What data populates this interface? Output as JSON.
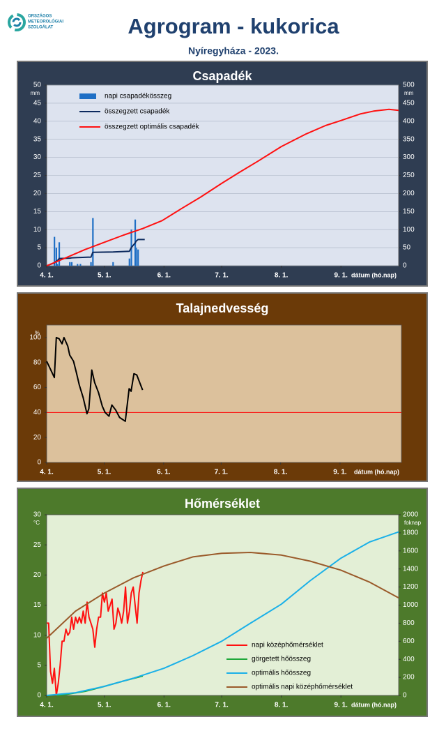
{
  "header": {
    "logo_text": [
      "ORSZÁGOS",
      "METEOROLÓGIAI",
      "SZOLGÁLAT"
    ],
    "title": "Agrogram - kukorica",
    "subtitle": "Nyíregyháza - 2023."
  },
  "chart_data": [
    {
      "type": "combo",
      "title": "Csapadék",
      "frame_color": "#2f3d52",
      "plot_color": "#dde3ef",
      "grid": true,
      "legend": "upper left",
      "xlabel": "dátum (hó.nap)",
      "ylabel": "mm",
      "y2label": "mm",
      "xlim": [
        0,
        183
      ],
      "xticks": [
        {
          "value": 0,
          "label": "4. 1."
        },
        {
          "value": 30,
          "label": "5. 1."
        },
        {
          "value": 61,
          "label": "6. 1."
        },
        {
          "value": 91,
          "label": "7. 1."
        },
        {
          "value": 122,
          "label": "8. 1."
        },
        {
          "value": 153,
          "label": "9. 1."
        }
      ],
      "ylim": [
        0,
        50
      ],
      "yticks": [
        0,
        5,
        10,
        15,
        20,
        25,
        30,
        35,
        40,
        45,
        50
      ],
      "y2lim": [
        0,
        500
      ],
      "y2ticks": [
        0,
        50,
        100,
        150,
        200,
        250,
        300,
        350,
        400,
        450,
        500
      ],
      "series": [
        {
          "name": "napi csapadékösszeg",
          "kind": "bar",
          "color": "#1f6fc5",
          "x": [
            4,
            5,
            5.5,
            6.5,
            12,
            13,
            16,
            17.5,
            23,
            24,
            34.5,
            43,
            44,
            46,
            46.5,
            47.5
          ],
          "values": [
            8,
            5,
            0.5,
            6.5,
            1,
            1,
            0.5,
            0.5,
            1,
            13.2,
            1,
            2,
            10,
            12.8,
            5,
            4.5
          ]
        },
        {
          "name": "összegzett csapadék",
          "kind": "line",
          "axis": "y2",
          "color": "#0d2a5e",
          "x": [
            0,
            4,
            5,
            5.5,
            6.5,
            12,
            13,
            16,
            17.5,
            23,
            24,
            34.5,
            43,
            44,
            46,
            46.5,
            47.5,
            51
          ],
          "values": [
            0,
            8,
            13,
            13.5,
            20,
            21,
            22,
            22.5,
            23,
            24,
            37.2,
            38.2,
            40.2,
            50.2,
            63,
            68,
            72.5,
            72.5
          ]
        },
        {
          "name": "összegzett optimális  csapadék",
          "kind": "line",
          "axis": "y2",
          "color": "#ff1010",
          "x": [
            0,
            10,
            20,
            30,
            40,
            50,
            60,
            70,
            80,
            91,
            100,
            110,
            122,
            135,
            145,
            153,
            163,
            170,
            178,
            183
          ],
          "values": [
            0,
            22,
            45,
            65,
            85,
            103,
            125,
            158,
            190,
            228,
            258,
            290,
            330,
            365,
            388,
            402,
            420,
            428,
            433,
            430
          ]
        }
      ]
    },
    {
      "type": "line",
      "title": "Talajnedvesség",
      "frame_color": "#6b3a08",
      "plot_color": "#dcc19c",
      "grid": false,
      "xlabel": "dátum (hó.nap)",
      "ylabel": "%",
      "xlim": [
        0,
        185
      ],
      "xticks": [
        {
          "value": 0,
          "label": "4. 1."
        },
        {
          "value": 30,
          "label": "5. 1."
        },
        {
          "value": 61,
          "label": "6. 1."
        },
        {
          "value": 91,
          "label": "7. 1."
        },
        {
          "value": 122,
          "label": "8. 1."
        },
        {
          "value": 153,
          "label": "9. 1."
        }
      ],
      "ylim": [
        0,
        110
      ],
      "yticks": [
        0,
        20,
        40,
        60,
        80,
        100
      ],
      "threshold": {
        "value": 40,
        "color": "#ff0000"
      },
      "series": [
        {
          "kind": "line",
          "color": "#000000",
          "x": [
            0,
            4,
            5,
            6.5,
            8,
            9,
            11,
            12,
            14,
            15.5,
            17,
            19,
            21,
            22,
            23.5,
            25,
            27,
            29,
            30.5,
            32.5,
            34,
            36,
            38,
            41,
            43,
            44,
            45.5,
            47,
            50
          ],
          "values": [
            81,
            68,
            100,
            99,
            95,
            100,
            93,
            86,
            81,
            72,
            62,
            52,
            39,
            43,
            74,
            64,
            56,
            45,
            40,
            37,
            46,
            42,
            36,
            33,
            59,
            57,
            71,
            70,
            58
          ]
        }
      ]
    },
    {
      "type": "line",
      "title": "Hőmérséklet",
      "frame_color": "#4d7a2b",
      "plot_color": "#e3efd6",
      "grid": false,
      "legend": "lower right",
      "xlabel": "dátum (hó.nap)",
      "ylabel": "°C",
      "y2label": "foknap",
      "xlim": [
        0,
        183
      ],
      "xticks": [
        {
          "value": 0,
          "label": "4. 1."
        },
        {
          "value": 30,
          "label": "5. 1."
        },
        {
          "value": 61,
          "label": "6. 1."
        },
        {
          "value": 91,
          "label": "7. 1."
        },
        {
          "value": 122,
          "label": "8. 1."
        },
        {
          "value": 153,
          "label": "9. 1."
        }
      ],
      "ylim": [
        0,
        30
      ],
      "yticks": [
        0,
        5,
        10,
        15,
        20,
        25,
        30
      ],
      "y2lim": [
        0,
        2000
      ],
      "y2ticks": [
        0,
        200,
        400,
        600,
        800,
        1000,
        1200,
        1400,
        1600,
        1800,
        2000
      ],
      "series": [
        {
          "name": "napi középhőmérséklet",
          "kind": "line",
          "color": "#ff1010",
          "x": [
            0,
            1,
            2,
            3,
            4,
            5,
            6,
            7,
            8,
            9,
            10,
            11,
            12,
            13,
            14,
            15,
            16,
            17,
            18,
            19,
            20,
            21,
            22,
            23,
            24,
            25,
            26,
            27,
            28,
            29,
            30,
            31,
            32,
            33,
            34,
            35,
            36,
            37,
            38,
            39,
            40,
            41,
            42,
            43,
            44,
            45,
            46,
            47,
            48,
            49,
            50
          ],
          "values": [
            12,
            12,
            4,
            2,
            4.5,
            0,
            2,
            5,
            9,
            9,
            11,
            10,
            10.5,
            13,
            11,
            13,
            12,
            13,
            12,
            14,
            12,
            15.5,
            13,
            12,
            11,
            8,
            11,
            13,
            13,
            17,
            15.5,
            17,
            14,
            15,
            16,
            11,
            12,
            14.5,
            13.5,
            12,
            14,
            18,
            12,
            14,
            17,
            18,
            15,
            12,
            17,
            19,
            20.5
          ]
        },
        {
          "name": "görgetett hőösszeg",
          "kind": "line",
          "axis": "y2",
          "color": "#1fa83a",
          "x": [
            5,
            10,
            20,
            30,
            40,
            50
          ],
          "values": [
            0,
            10,
            45,
            100,
            160,
            215
          ]
        },
        {
          "name": "optimális hőösszeg",
          "kind": "line",
          "axis": "y2",
          "color": "#1ab0e8",
          "x": [
            0,
            15,
            30,
            45,
            61,
            76,
            91,
            106,
            122,
            137,
            153,
            168,
            183
          ],
          "values": [
            0,
            30,
            100,
            190,
            300,
            440,
            600,
            800,
            1010,
            1270,
            1520,
            1700,
            1810
          ]
        },
        {
          "name": "optimális napi középhőmérséklet",
          "kind": "line",
          "color": "#9a5a2a",
          "x": [
            0,
            15,
            30,
            45,
            61,
            76,
            91,
            106,
            122,
            137,
            153,
            168,
            183
          ],
          "values": [
            9.5,
            14,
            17,
            19.5,
            21.5,
            23,
            23.6,
            23.75,
            23.3,
            22.3,
            20.8,
            18.8,
            16.2
          ]
        }
      ]
    }
  ]
}
